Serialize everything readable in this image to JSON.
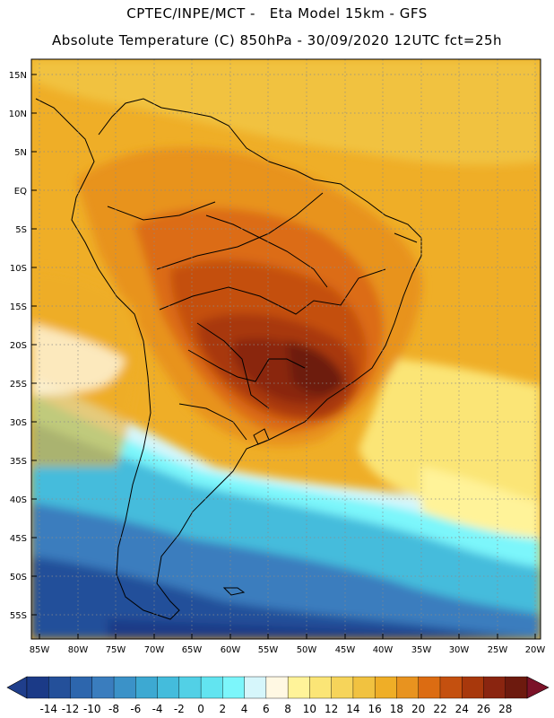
{
  "header": {
    "line1": "CPTEC/INPE/MCT -   Eta Model 15km - GFS",
    "line2": "Absolute Temperature (C) 850hPa - 30/09/2020 12UTC fct=25h"
  },
  "axes": {
    "lat_labels": [
      "15N",
      "10N",
      "5N",
      "EQ",
      "5S",
      "10S",
      "15S",
      "20S",
      "25S",
      "30S",
      "35S",
      "40S",
      "45S",
      "50S",
      "55S"
    ],
    "lon_labels": [
      "85W",
      "80W",
      "75W",
      "70W",
      "65W",
      "60W",
      "55W",
      "50W",
      "45W",
      "40W",
      "35W",
      "30W",
      "25W",
      "20W"
    ]
  },
  "colorbar": {
    "labels": [
      "-14",
      "-12",
      "-10",
      "-8",
      "-6",
      "-4",
      "-2",
      "0",
      "2",
      "4",
      "6",
      "8",
      "10",
      "12",
      "14",
      "16",
      "18",
      "20",
      "22",
      "24",
      "26",
      "28"
    ],
    "colors": [
      "#1b3a87",
      "#24509a",
      "#2d66ad",
      "#3a7dbe",
      "#3b92c8",
      "#3da9d2",
      "#44bcdc",
      "#52d0e6",
      "#62e4f0",
      "#7cf6fb",
      "#d6f6fb",
      "#fff8e3",
      "#fff399",
      "#fbe576",
      "#f6d45a",
      "#f1c240",
      "#efae27",
      "#e8931f",
      "#dc6c12",
      "#c4500f",
      "#a8380c",
      "#8a2510",
      "#6d1a0e"
    ],
    "low_color": "#1f3e8b",
    "high_color": "#7b1228"
  },
  "chart_data": {
    "type": "heatmap",
    "title": "Absolute Temperature (C) 850hPa - 30/09/2020 12UTC fct=25h",
    "source": "CPTEC/INPE/MCT - Eta Model 15km - GFS",
    "variable": "Absolute Temperature (C)",
    "level": "850hPa",
    "lon_range": [
      -85,
      -20
    ],
    "lat_range": [
      -58,
      16
    ],
    "colorbar_range": [
      -14,
      28
    ],
    "colorbar_step": 2
  }
}
